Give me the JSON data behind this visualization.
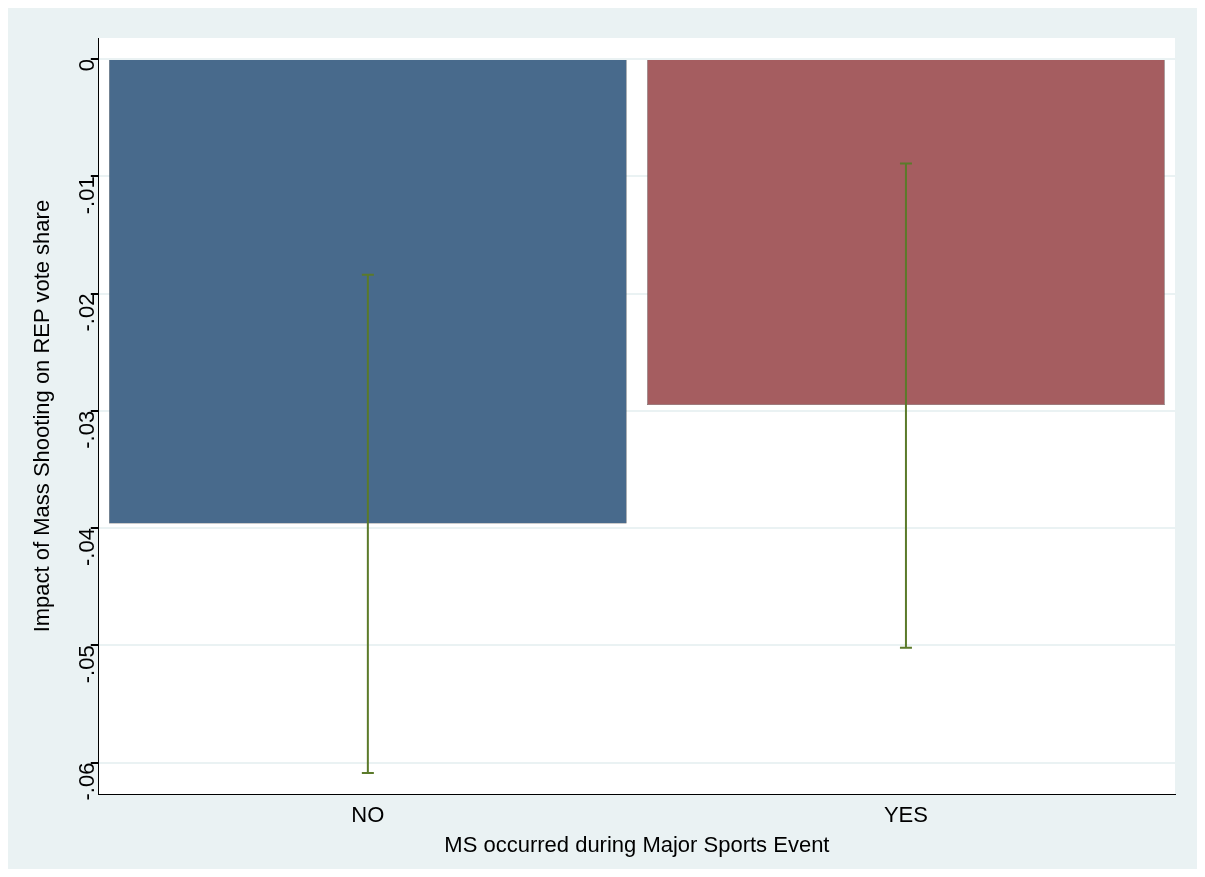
{
  "chart_data": {
    "type": "bar",
    "xlabel": "MS occurred during Major Sports Event",
    "ylabel": "Impact of Mass Shooting on REP vote share",
    "categories": [
      "NO",
      "YES"
    ],
    "values": [
      -0.0396,
      -0.0295
    ],
    "colors": [
      "#486a8c",
      "#a55d60"
    ],
    "errors": [
      [
        -0.0609,
        -0.0184
      ],
      [
        -0.0502,
        -0.0089
      ]
    ],
    "ylim": [
      -0.0627,
      0.0018
    ],
    "yticks": [
      {
        "value": -0.06,
        "label": "-.06"
      },
      {
        "value": -0.05,
        "label": "-.05"
      },
      {
        "value": -0.04,
        "label": "-.04"
      },
      {
        "value": -0.03,
        "label": "-.03"
      },
      {
        "value": -0.02,
        "label": "-.02"
      },
      {
        "value": -0.01,
        "label": "-.01"
      },
      0
    ],
    "grid": "y",
    "legend": false
  }
}
